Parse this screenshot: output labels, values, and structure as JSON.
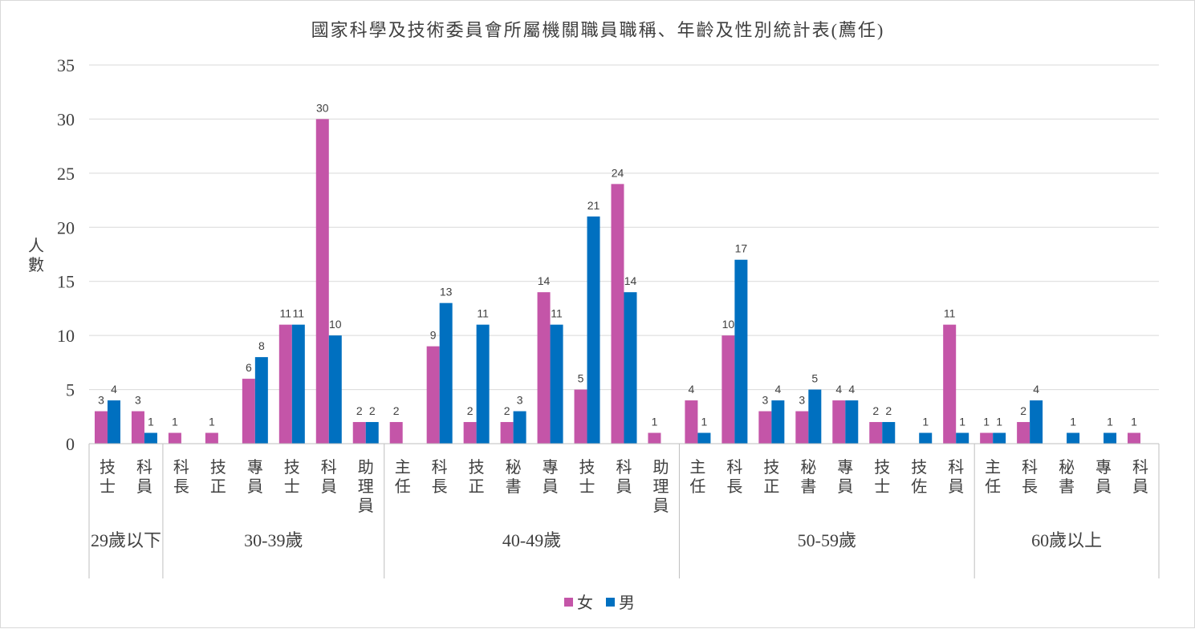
{
  "chart_data": {
    "type": "bar",
    "title": "國家科學及技術委員會所屬機關職員職稱、年齡及性別統計表(薦任)",
    "ylabel": "人數",
    "ylim": [
      0,
      35
    ],
    "yticks": [
      "0",
      "5",
      "10",
      "15",
      "20",
      "25",
      "30",
      "35"
    ],
    "grid": true,
    "legend_position": "bottom",
    "colors": {
      "female": "#c455a8",
      "male": "#0070c0",
      "grid": "#d9d9d9",
      "axis": "#bfbfbf"
    },
    "groups": [
      {
        "label": "29歲以下",
        "categories": [
          "技士",
          "科員"
        ]
      },
      {
        "label": "30-39歲",
        "categories": [
          "科長",
          "技正",
          "專員",
          "技士",
          "科員",
          "助理員"
        ]
      },
      {
        "label": "40-49歲",
        "categories": [
          "主任",
          "科長",
          "技正",
          "秘書",
          "專員",
          "技士",
          "科員",
          "助理員"
        ]
      },
      {
        "label": "50-59歲",
        "categories": [
          "主任",
          "科長",
          "技正",
          "秘書",
          "專員",
          "技士",
          "技佐",
          "科員"
        ]
      },
      {
        "label": "60歲以上",
        "categories": [
          "主任",
          "科長",
          "秘書",
          "專員",
          "科員"
        ]
      }
    ],
    "series": [
      {
        "name": "女",
        "values": [
          3,
          3,
          1,
          1,
          6,
          11,
          30,
          2,
          2,
          9,
          2,
          2,
          14,
          5,
          24,
          1,
          4,
          10,
          3,
          3,
          4,
          2,
          null,
          11,
          1,
          2,
          null,
          null,
          1
        ]
      },
      {
        "name": "男",
        "values": [
          4,
          1,
          null,
          null,
          8,
          11,
          10,
          2,
          null,
          13,
          11,
          3,
          11,
          21,
          14,
          null,
          1,
          17,
          4,
          5,
          4,
          2,
          1,
          1,
          1,
          4,
          1,
          1,
          null
        ]
      }
    ]
  }
}
